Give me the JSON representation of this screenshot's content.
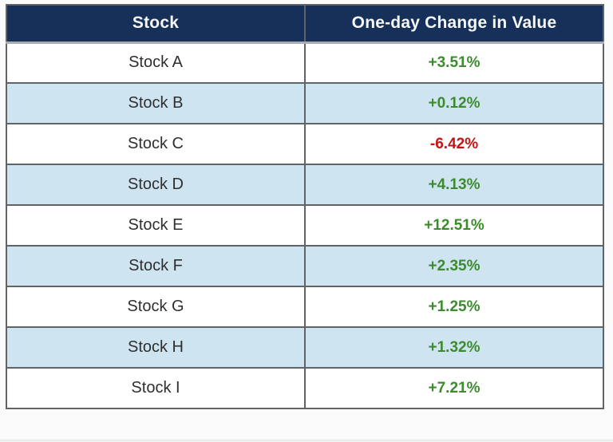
{
  "table": {
    "header": {
      "stock_col": "Stock",
      "change_col": "One-day Change in Value"
    },
    "rows": [
      {
        "stock": "Stock A",
        "change": "+3.51%",
        "direction": "up"
      },
      {
        "stock": "Stock B",
        "change": "+0.12%",
        "direction": "up"
      },
      {
        "stock": "Stock C",
        "change": "-6.42%",
        "direction": "down"
      },
      {
        "stock": "Stock D",
        "change": "+4.13%",
        "direction": "up"
      },
      {
        "stock": "Stock E",
        "change": "+12.51%",
        "direction": "up"
      },
      {
        "stock": "Stock F",
        "change": "+2.35%",
        "direction": "up"
      },
      {
        "stock": "Stock G",
        "change": "+1.25%",
        "direction": "up"
      },
      {
        "stock": "Stock H",
        "change": "+1.32%",
        "direction": "up"
      },
      {
        "stock": "Stock I",
        "change": "+7.21%",
        "direction": "up"
      }
    ]
  },
  "chart_data": {
    "type": "table",
    "title": "",
    "columns": [
      "Stock",
      "One-day Change in Value"
    ],
    "rows": [
      [
        "Stock A",
        "+3.51%"
      ],
      [
        "Stock B",
        "+0.12%"
      ],
      [
        "Stock C",
        "-6.42%"
      ],
      [
        "Stock D",
        "+4.13%"
      ],
      [
        "Stock E",
        "+12.51%"
      ],
      [
        "Stock F",
        "+2.35%"
      ],
      [
        "Stock G",
        "+1.25%"
      ],
      [
        "Stock H",
        "+1.32%"
      ],
      [
        "Stock I",
        "+7.21%"
      ]
    ],
    "change_values_percent": [
      3.51,
      0.12,
      -6.42,
      4.13,
      12.51,
      2.35,
      1.25,
      1.32,
      7.21
    ]
  },
  "colors": {
    "header_bg": "#17305a",
    "header_text": "#f4f7fb",
    "row_alt_bg": "#cfe4f1",
    "row_bg": "#ffffff",
    "positive_text": "#3d8b2e",
    "negative_text": "#c41414",
    "border": "#606468"
  }
}
